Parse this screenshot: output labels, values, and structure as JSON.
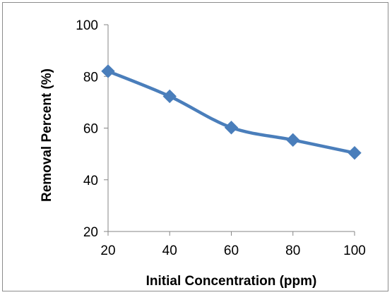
{
  "chart_data": {
    "type": "line",
    "title": "",
    "xlabel": "Initial Concentration (ppm)",
    "ylabel": "Removal Percent (%)",
    "x": [
      20,
      40,
      60,
      80,
      100
    ],
    "x_tick_labels": [
      "20",
      "40",
      "60",
      "80",
      "100"
    ],
    "y_tick_labels": [
      "20",
      "40",
      "60",
      "80",
      "100"
    ],
    "xlim": [
      20,
      100
    ],
    "ylim": [
      20,
      100
    ],
    "y_ticks": [
      20,
      40,
      60,
      80,
      100
    ],
    "grid": false,
    "legend": "none",
    "series": [
      {
        "values": [
          82,
          72.3,
          60.2,
          55.4,
          50.4
        ],
        "color": "#4a7ebb",
        "marker": "diamond"
      }
    ]
  }
}
